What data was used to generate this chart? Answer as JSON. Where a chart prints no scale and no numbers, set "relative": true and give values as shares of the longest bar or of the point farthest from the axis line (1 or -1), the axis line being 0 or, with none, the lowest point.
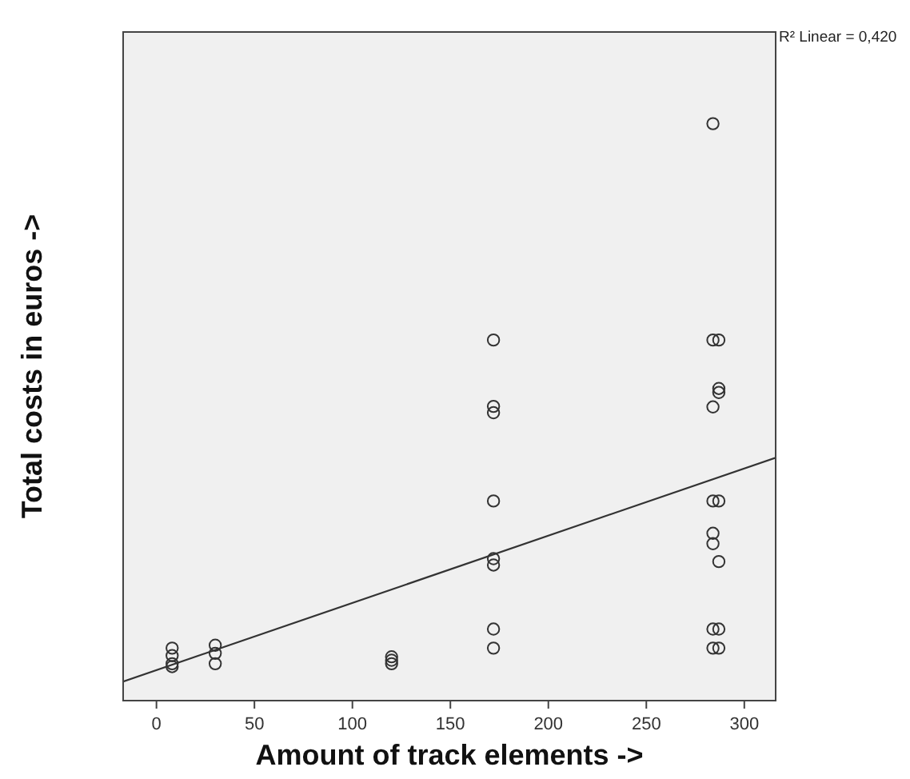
{
  "chart_data": {
    "type": "scatter",
    "xlabel": "Amount of track elements ->",
    "ylabel": "Total costs in euros ->",
    "relative": true,
    "xlim": [
      -17,
      316
    ],
    "xticks": [
      0,
      50,
      100,
      150,
      200,
      250,
      300
    ],
    "marker": "circle",
    "grid": false,
    "annotations": [
      "R² Linear = 0,420"
    ],
    "series": [
      {
        "color": "#333333",
        "x": [
          8,
          8,
          8,
          8,
          30,
          30,
          30,
          120,
          120,
          120,
          172,
          172,
          172,
          172,
          172,
          172,
          172,
          172,
          284,
          284,
          284,
          284,
          284,
          284,
          284,
          284,
          287,
          287,
          287,
          287,
          287,
          287,
          287
        ],
        "values": [
          0.091,
          0.078,
          0.064,
          0.059,
          0.096,
          0.082,
          0.064,
          0.076,
          0.07,
          0.064,
          0.625,
          0.51,
          0.499,
          0.346,
          0.246,
          0.235,
          0.124,
          0.091,
          1.0,
          0.625,
          0.509,
          0.346,
          0.29,
          0.272,
          0.124,
          0.091,
          0.625,
          0.541,
          0.534,
          0.346,
          0.241,
          0.124,
          0.091
        ]
      },
      {
        "type": "line",
        "color": "#333333",
        "x": [
          -17,
          316
        ],
        "values": [
          0.033,
          0.421
        ],
        "line_style": "solid",
        "marker": "none"
      }
    ]
  }
}
